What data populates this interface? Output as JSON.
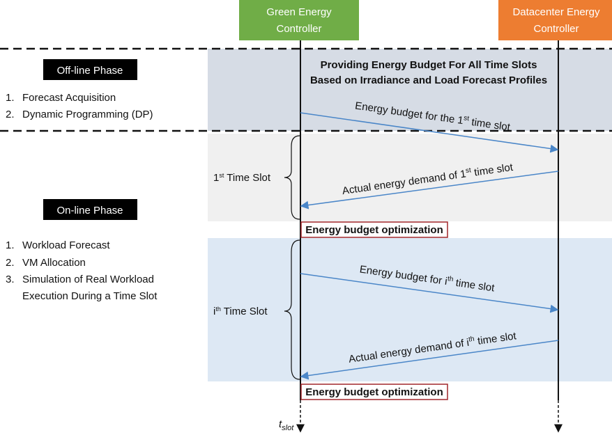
{
  "controllers": {
    "green": {
      "line1": "Green Energy",
      "line2": "Controller"
    },
    "datacenter": {
      "line1": "Datacenter Energy",
      "line2": "Controller"
    }
  },
  "offline": {
    "label": "Off-line Phase",
    "header": {
      "line1": "Providing Energy Budget For All Time Slots",
      "line2": "Based on Irradiance and Load Forecast Profiles"
    },
    "items": [
      {
        "marker": "1.",
        "text": "Forecast Acquisition"
      },
      {
        "marker": "2.",
        "text": "Dynamic Programming (DP)"
      }
    ],
    "message": {
      "before": "Energy budget for the 1",
      "sup": "st",
      "after": " time slot"
    }
  },
  "online": {
    "label": "On-line Phase",
    "items": [
      {
        "marker": "1.",
        "text": "Workload Forecast"
      },
      {
        "marker": "2.",
        "text": "VM Allocation"
      },
      {
        "marker": "3.",
        "text": "Simulation of Real Workload",
        "text2": "Execution During a Time Slot"
      }
    ],
    "slot1": {
      "label": {
        "before": "1",
        "sup": "st",
        "after": " Time Slot"
      },
      "response": {
        "before": "Actual energy demand of 1",
        "sup": "st",
        "after": " time slot"
      },
      "optimization": "Energy budget optimization"
    },
    "sloti": {
      "label": {
        "before": "i",
        "sup": "th",
        "after": " Time Slot"
      },
      "message": {
        "before": "Energy budget for i",
        "sup": "th",
        "after": " time slot"
      },
      "response": {
        "before": "Actual energy demand of i",
        "sup": "th",
        "after": " time slot"
      },
      "optimization": "Energy budget optimization"
    }
  },
  "time_axis": {
    "base": "t",
    "sub": "slot"
  }
}
